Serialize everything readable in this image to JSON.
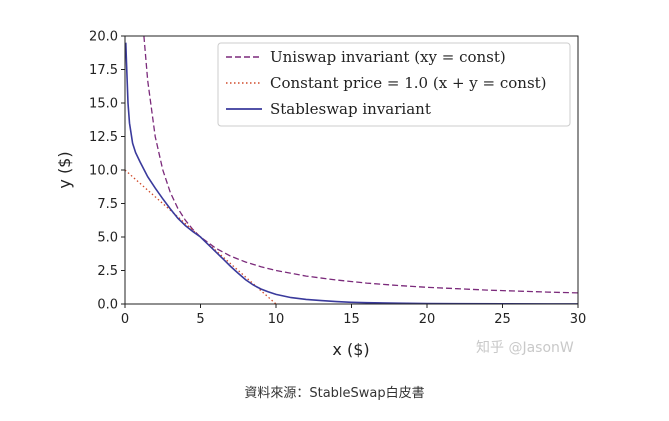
{
  "chart_data": {
    "type": "line",
    "xlabel": "x ($)",
    "ylabel": "y ($)",
    "xlim": [
      0,
      30
    ],
    "ylim": [
      0,
      20
    ],
    "xticks": [
      "0",
      "5",
      "10",
      "15",
      "20",
      "25",
      "30"
    ],
    "yticks": [
      "0.0",
      "2.5",
      "5.0",
      "7.5",
      "10.0",
      "12.5",
      "15.0",
      "17.5",
      "20.0"
    ],
    "grid": false,
    "legend_position": "top-right",
    "series": [
      {
        "name": "Uniswap invariant (xy = const)",
        "color": "#7b2a7b",
        "style": "dashed",
        "x": [
          1.25,
          1.5,
          2,
          2.5,
          3,
          3.5,
          4,
          4.5,
          5,
          6,
          7,
          8,
          9,
          10,
          12,
          14,
          16,
          18,
          20,
          22,
          24,
          26,
          28,
          30
        ],
        "y": [
          20,
          16.67,
          12.5,
          10,
          8.33,
          7.14,
          6.25,
          5.56,
          5,
          4.17,
          3.57,
          3.13,
          2.78,
          2.5,
          2.08,
          1.79,
          1.56,
          1.39,
          1.25,
          1.14,
          1.04,
          0.96,
          0.89,
          0.83
        ]
      },
      {
        "name": "Constant price = 1.0 (x + y = const)",
        "color": "#d04a2a",
        "style": "dotted",
        "x": [
          0,
          10
        ],
        "y": [
          10,
          0
        ]
      },
      {
        "name": "Stableswap invariant",
        "color": "#3a3a9c",
        "style": "solid",
        "x": [
          0.05,
          0.1,
          0.2,
          0.3,
          0.5,
          0.7,
          1,
          1.5,
          2,
          2.5,
          3,
          3.5,
          4,
          4.5,
          5,
          5.5,
          6,
          6.5,
          7,
          7.5,
          8,
          8.5,
          9,
          9.5,
          10,
          11,
          12,
          13,
          14,
          15,
          16,
          18,
          20,
          22,
          25,
          28,
          30
        ],
        "y": [
          19.5,
          18,
          15,
          13.5,
          12,
          11.3,
          10.6,
          9.5,
          8.65,
          7.85,
          7.1,
          6.4,
          5.85,
          5.4,
          5.0,
          4.45,
          3.9,
          3.35,
          2.8,
          2.28,
          1.8,
          1.42,
          1.12,
          0.9,
          0.72,
          0.48,
          0.34,
          0.25,
          0.18,
          0.13,
          0.1,
          0.06,
          0.04,
          0.025,
          0.015,
          0.008,
          0.005
        ]
      }
    ]
  },
  "caption": "資料來源：StableSwap白皮書",
  "watermark": "知乎 @JasonW"
}
